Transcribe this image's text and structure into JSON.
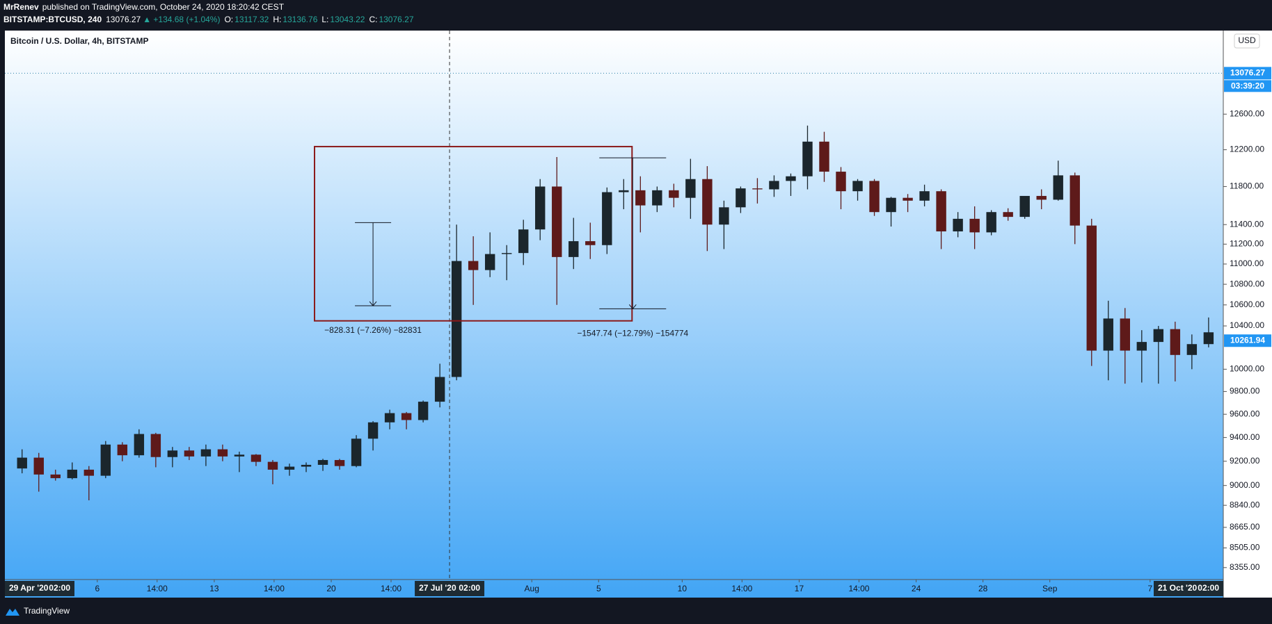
{
  "header": {
    "author": "MrRenev",
    "published": "published on TradingView.com, October 24, 2020 18:20:42 CEST",
    "symbol": "BITSTAMP:BTCUSD, 240",
    "price": "13076.27",
    "change": "▲ +134.68 (+1.04%)",
    "ohlc": [
      {
        "label": "O:",
        "value": "13117.32"
      },
      {
        "label": "H:",
        "value": "13136.76"
      },
      {
        "label": "L:",
        "value": "13043.22"
      },
      {
        "label": "C:",
        "value": "13076.27"
      }
    ]
  },
  "footer": {
    "brand": "TradingView"
  },
  "chart_data": {
    "type": "candlestick",
    "title": "Bitcoin / U.S. Dollar, 4h, BITSTAMP",
    "currency": "USD",
    "log_scale": true,
    "grid": false,
    "up_color": "#1b262c",
    "down_color": "#5e1a1a",
    "ylim": [
      8265,
      13591
    ],
    "yticks": [
      {
        "value": 8355,
        "label": "8355.00"
      },
      {
        "value": 8505,
        "label": "8505.00"
      },
      {
        "value": 8665,
        "label": "8665.00"
      },
      {
        "value": 8840,
        "label": "8840.00"
      },
      {
        "value": 9000,
        "label": "9000.00"
      },
      {
        "value": 9200,
        "label": "9200.00"
      },
      {
        "value": 9400,
        "label": "9400.00"
      },
      {
        "value": 9600,
        "label": "9600.00"
      },
      {
        "value": 9800,
        "label": "9800.00"
      },
      {
        "value": 10000,
        "label": "10000.00"
      },
      {
        "value": 10400,
        "label": "10400.00"
      },
      {
        "value": 10600,
        "label": "10600.00"
      },
      {
        "value": 10800,
        "label": "10800.00"
      },
      {
        "value": 11000,
        "label": "11000.00"
      },
      {
        "value": 11200,
        "label": "11200.00"
      },
      {
        "value": 11400,
        "label": "11400.00"
      },
      {
        "value": 11800,
        "label": "11800.00"
      },
      {
        "value": 12200,
        "label": "12200.00"
      },
      {
        "value": 12600,
        "label": "12600.00"
      }
    ],
    "xlim": [
      -0.53,
      72.38
    ],
    "xticks": [
      {
        "value": 5,
        "label": "6"
      },
      {
        "value": 8.58,
        "label": "14:00"
      },
      {
        "value": 12,
        "label": "13"
      },
      {
        "value": 15.58,
        "label": "14:00"
      },
      {
        "value": 19,
        "label": "20"
      },
      {
        "value": 22.58,
        "label": "14:00"
      },
      {
        "value": 31,
        "label": "Aug"
      },
      {
        "value": 35,
        "label": "5"
      },
      {
        "value": 40,
        "label": "10"
      },
      {
        "value": 43.58,
        "label": "14:00"
      },
      {
        "value": 47,
        "label": "17"
      },
      {
        "value": 50.58,
        "label": "14:00"
      },
      {
        "value": 54,
        "label": "24"
      },
      {
        "value": 58,
        "label": "28"
      },
      {
        "value": 62,
        "label": "Sep"
      },
      {
        "value": 68,
        "label": "7"
      }
    ],
    "time_badges": [
      {
        "date": "29 Apr '20",
        "time": "02:00"
      },
      {
        "date": "27 Jul '20",
        "time": "02:00"
      },
      {
        "date": "21 Oct '20",
        "time": "02:00"
      }
    ],
    "crosshair_x": 26.08,
    "last_price": 13076.27,
    "countdown": "03:39:20",
    "marked_price": 10261.94,
    "candles": [
      [
        9140,
        9300,
        9100,
        9230
      ],
      [
        9230,
        9270,
        8950,
        9090
      ],
      [
        9090,
        9130,
        9040,
        9060
      ],
      [
        9060,
        9190,
        9050,
        9130
      ],
      [
        9130,
        9160,
        8880,
        9080
      ],
      [
        9080,
        9370,
        9060,
        9340
      ],
      [
        9340,
        9360,
        9200,
        9250
      ],
      [
        9250,
        9470,
        9230,
        9430
      ],
      [
        9430,
        9440,
        9150,
        9235
      ],
      [
        9235,
        9320,
        9150,
        9290
      ],
      [
        9290,
        9320,
        9210,
        9240
      ],
      [
        9240,
        9340,
        9160,
        9300
      ],
      [
        9300,
        9340,
        9200,
        9240
      ],
      [
        9240,
        9280,
        9110,
        9255
      ],
      [
        9255,
        9260,
        9160,
        9195
      ],
      [
        9195,
        9210,
        9010,
        9130
      ],
      [
        9130,
        9180,
        9080,
        9155
      ],
      [
        9155,
        9190,
        9110,
        9170
      ],
      [
        9170,
        9220,
        9120,
        9210
      ],
      [
        9210,
        9220,
        9130,
        9160
      ],
      [
        9160,
        9420,
        9150,
        9390
      ],
      [
        9390,
        9540,
        9290,
        9530
      ],
      [
        9530,
        9640,
        9470,
        9610
      ],
      [
        9610,
        9620,
        9470,
        9550
      ],
      [
        9550,
        9720,
        9530,
        9710
      ],
      [
        9710,
        10050,
        9660,
        9930
      ],
      [
        9930,
        11400,
        9900,
        11030
      ],
      [
        11030,
        11280,
        10600,
        10940
      ],
      [
        10940,
        11320,
        10870,
        11100
      ],
      [
        11100,
        11190,
        10840,
        11110
      ],
      [
        11110,
        11450,
        10990,
        11350
      ],
      [
        11350,
        11880,
        11240,
        11800
      ],
      [
        11800,
        12120,
        10600,
        11070
      ],
      [
        11070,
        11470,
        10950,
        11230
      ],
      [
        11230,
        11420,
        11050,
        11190
      ],
      [
        11190,
        11790,
        11100,
        11740
      ],
      [
        11740,
        11880,
        11560,
        11760
      ],
      [
        11760,
        11910,
        11320,
        11600
      ],
      [
        11600,
        11800,
        11530,
        11760
      ],
      [
        11760,
        11830,
        11580,
        11680
      ],
      [
        11680,
        12100,
        11460,
        11880
      ],
      [
        11880,
        12020,
        11130,
        11400
      ],
      [
        11400,
        11650,
        11150,
        11580
      ],
      [
        11580,
        11800,
        11520,
        11780
      ],
      [
        11780,
        11890,
        11620,
        11770
      ],
      [
        11770,
        11920,
        11690,
        11860
      ],
      [
        11860,
        11940,
        11700,
        11910
      ],
      [
        11910,
        12470,
        11770,
        12290
      ],
      [
        12290,
        12400,
        11850,
        11960
      ],
      [
        11960,
        12010,
        11560,
        11750
      ],
      [
        11750,
        11880,
        11650,
        11860
      ],
      [
        11860,
        11880,
        11490,
        11530
      ],
      [
        11530,
        11690,
        11380,
        11680
      ],
      [
        11680,
        11720,
        11530,
        11650
      ],
      [
        11650,
        11820,
        11590,
        11750
      ],
      [
        11750,
        11770,
        11150,
        11330
      ],
      [
        11330,
        11530,
        11270,
        11460
      ],
      [
        11460,
        11590,
        11150,
        11320
      ],
      [
        11320,
        11550,
        11290,
        11530
      ],
      [
        11530,
        11570,
        11440,
        11480
      ],
      [
        11480,
        11690,
        11460,
        11700
      ],
      [
        11700,
        11770,
        11560,
        11660
      ],
      [
        11660,
        12080,
        11650,
        11920
      ],
      [
        11920,
        11950,
        11200,
        11390
      ],
      [
        11390,
        11460,
        10030,
        10170
      ],
      [
        10170,
        10640,
        9900,
        10470
      ],
      [
        10470,
        10570,
        9870,
        10170
      ],
      [
        10170,
        10360,
        9880,
        10250
      ],
      [
        10250,
        10400,
        9870,
        10370
      ],
      [
        10370,
        10440,
        9890,
        10130
      ],
      [
        10130,
        10320,
        10000,
        10230
      ],
      [
        10230,
        10480,
        10200,
        10340
      ]
    ],
    "rectangle": {
      "x": [
        18.0,
        37.0
      ],
      "y": [
        10448,
        12235
      ],
      "color": "#8b1a1a"
    },
    "measures": [
      {
        "x": 21.5,
        "from": 11420,
        "to": 10592,
        "label": "−828.31 (−7.26%) −82831"
      },
      {
        "x": 37.04,
        "from": 12111,
        "to": 10563,
        "label": "−1547.74 (−12.79%) −154774"
      }
    ]
  }
}
